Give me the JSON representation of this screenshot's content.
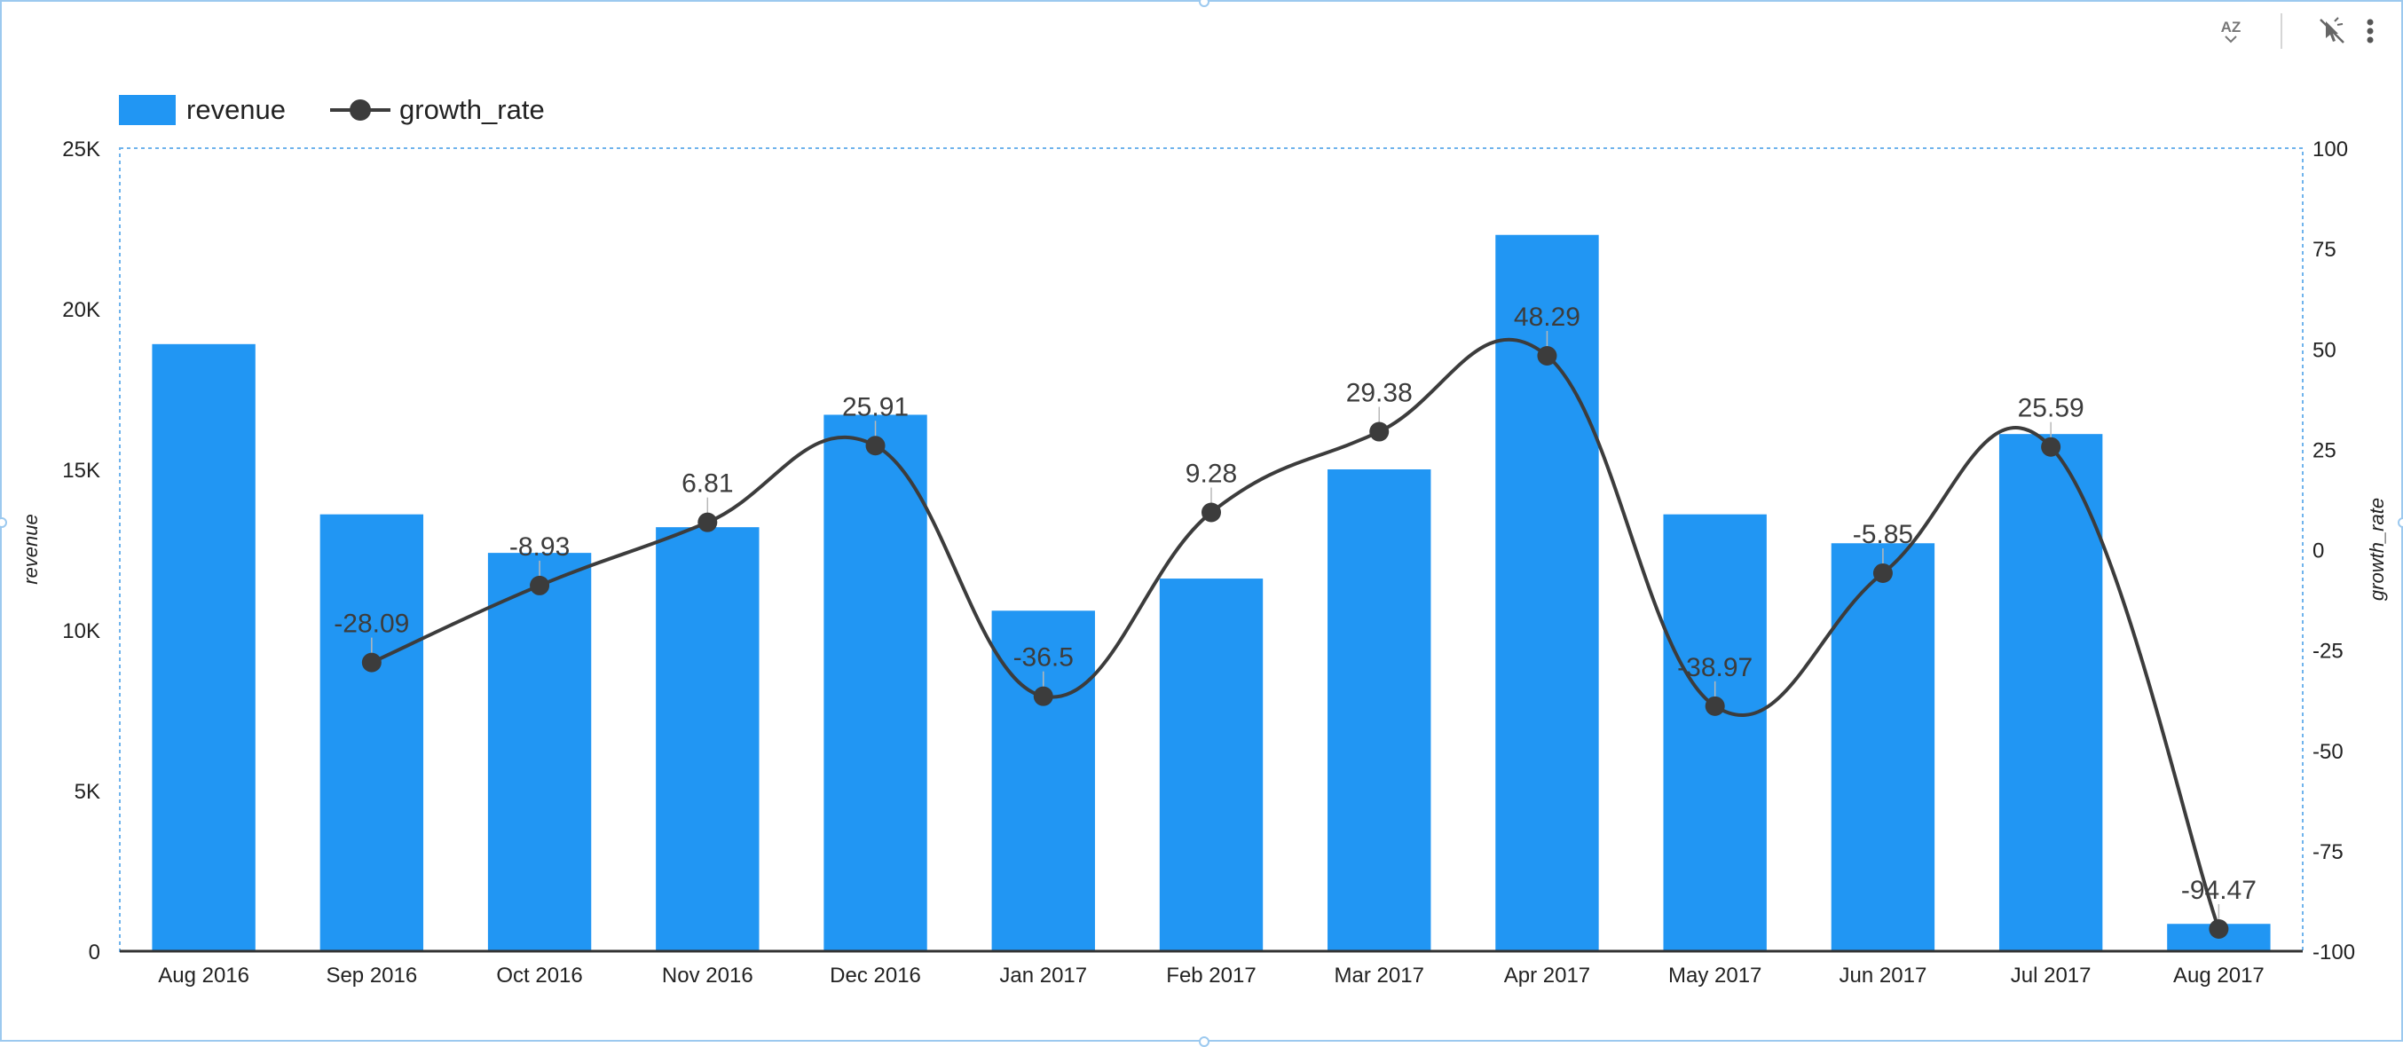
{
  "toolbar": {
    "sort_icon": "sort-az-icon",
    "interact_icon": "cursor-click-off-icon",
    "more_icon": "more-vertical-icon"
  },
  "colors": {
    "bar": "#2196f3",
    "line": "#3c3c3c",
    "axis_text": "#222222",
    "label_text": "#3c3c3c",
    "plot_border": "#6fb3ec",
    "selection": "#9cc9ef"
  },
  "legend": {
    "position": "top-left",
    "items": [
      {
        "label": "revenue",
        "kind": "bar"
      },
      {
        "label": "growth_rate",
        "kind": "line"
      }
    ]
  },
  "chart_data": {
    "type": "bar",
    "categories": [
      "Aug 2016",
      "Sep 2016",
      "Oct 2016",
      "Nov 2016",
      "Dec 2016",
      "Jan 2017",
      "Feb 2017",
      "Mar 2017",
      "Apr 2017",
      "May 2017",
      "Jun 2017",
      "Jul 2017",
      "Aug 2017"
    ],
    "series": [
      {
        "name": "revenue",
        "type": "bar",
        "axis": "left",
        "values": [
          18900,
          13600,
          12400,
          13200,
          16700,
          10600,
          11600,
          15000,
          22300,
          13600,
          12700,
          16100,
          850
        ]
      },
      {
        "name": "growth_rate",
        "type": "line",
        "axis": "right",
        "smooth": true,
        "values": [
          null,
          -28.09,
          -8.93,
          6.81,
          25.91,
          -36.5,
          9.28,
          29.38,
          48.29,
          -38.97,
          -5.85,
          25.59,
          -94.47
        ],
        "labels": [
          "",
          "-28.09",
          "-8.93",
          "6.81",
          "25.91",
          "-36.5",
          "9.28",
          "29.38",
          "48.29",
          "-38.97",
          "-5.85",
          "25.59",
          "-94.47"
        ]
      }
    ],
    "ylabel": "revenue",
    "y2label": "growth_rate",
    "ylim": [
      0,
      25000
    ],
    "y2lim": [
      -100,
      100
    ],
    "y_ticks": [
      0,
      5000,
      10000,
      15000,
      20000,
      25000
    ],
    "y_tick_labels": [
      "0",
      "5K",
      "10K",
      "15K",
      "20K",
      "25K"
    ],
    "y2_ticks": [
      -100,
      -75,
      -50,
      -25,
      0,
      25,
      50,
      75,
      100
    ],
    "y2_tick_labels": [
      "-100",
      "-75",
      "-50",
      "-25",
      "0",
      "25",
      "50",
      "75",
      "100"
    ],
    "grid": false
  }
}
